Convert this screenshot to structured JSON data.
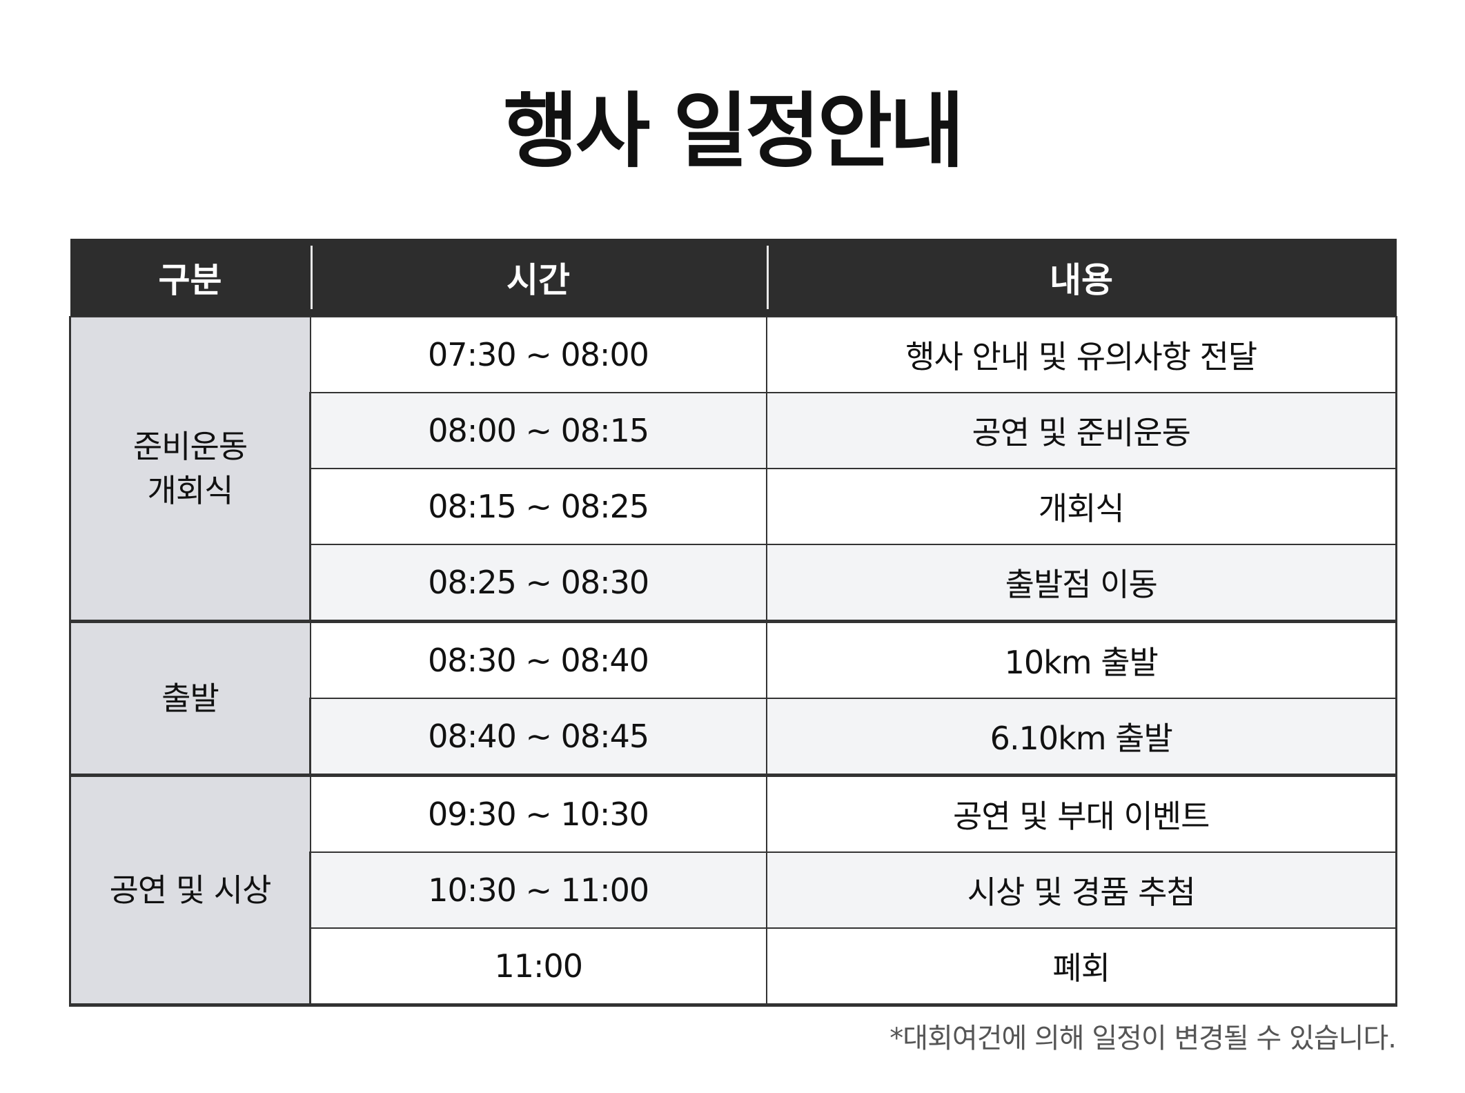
{
  "title": "행사 일정안내",
  "table": {
    "headers": [
      "구분",
      "시간",
      "내용"
    ],
    "groups": [
      {
        "label": "준비운동\n개회식",
        "rows": [
          {
            "time": "07:30 ~ 08:00",
            "content": "행사 안내 및 유의사항 전달"
          },
          {
            "time": "08:00 ~ 08:15",
            "content": "공연 및 준비운동"
          },
          {
            "time": "08:15 ~ 08:25",
            "content": "개회식"
          },
          {
            "time": "08:25 ~ 08:30",
            "content": "출발점 이동"
          }
        ]
      },
      {
        "label": "출발",
        "rows": [
          {
            "time": "08:30 ~ 08:40",
            "content": "10km 출발"
          },
          {
            "time": "08:40 ~ 08:45",
            "content": "6.10km 출발"
          }
        ]
      },
      {
        "label": "공연 및 시상",
        "rows": [
          {
            "time": "09:30 ~ 10:30",
            "content": "공연 및 부대 이벤트"
          },
          {
            "time": "10:30 ~ 11:00",
            "content": "시상 및 경품 추첨"
          },
          {
            "time": "11:00",
            "content": "폐회"
          }
        ]
      }
    ]
  },
  "footnote": "*대회여건에 의해 일정이 변경될 수 있습니다.",
  "colors": {
    "header_bg": "#2d2d2d",
    "group_bg": "#dcdde2",
    "alt_row_bg": "#f3f4f6"
  }
}
